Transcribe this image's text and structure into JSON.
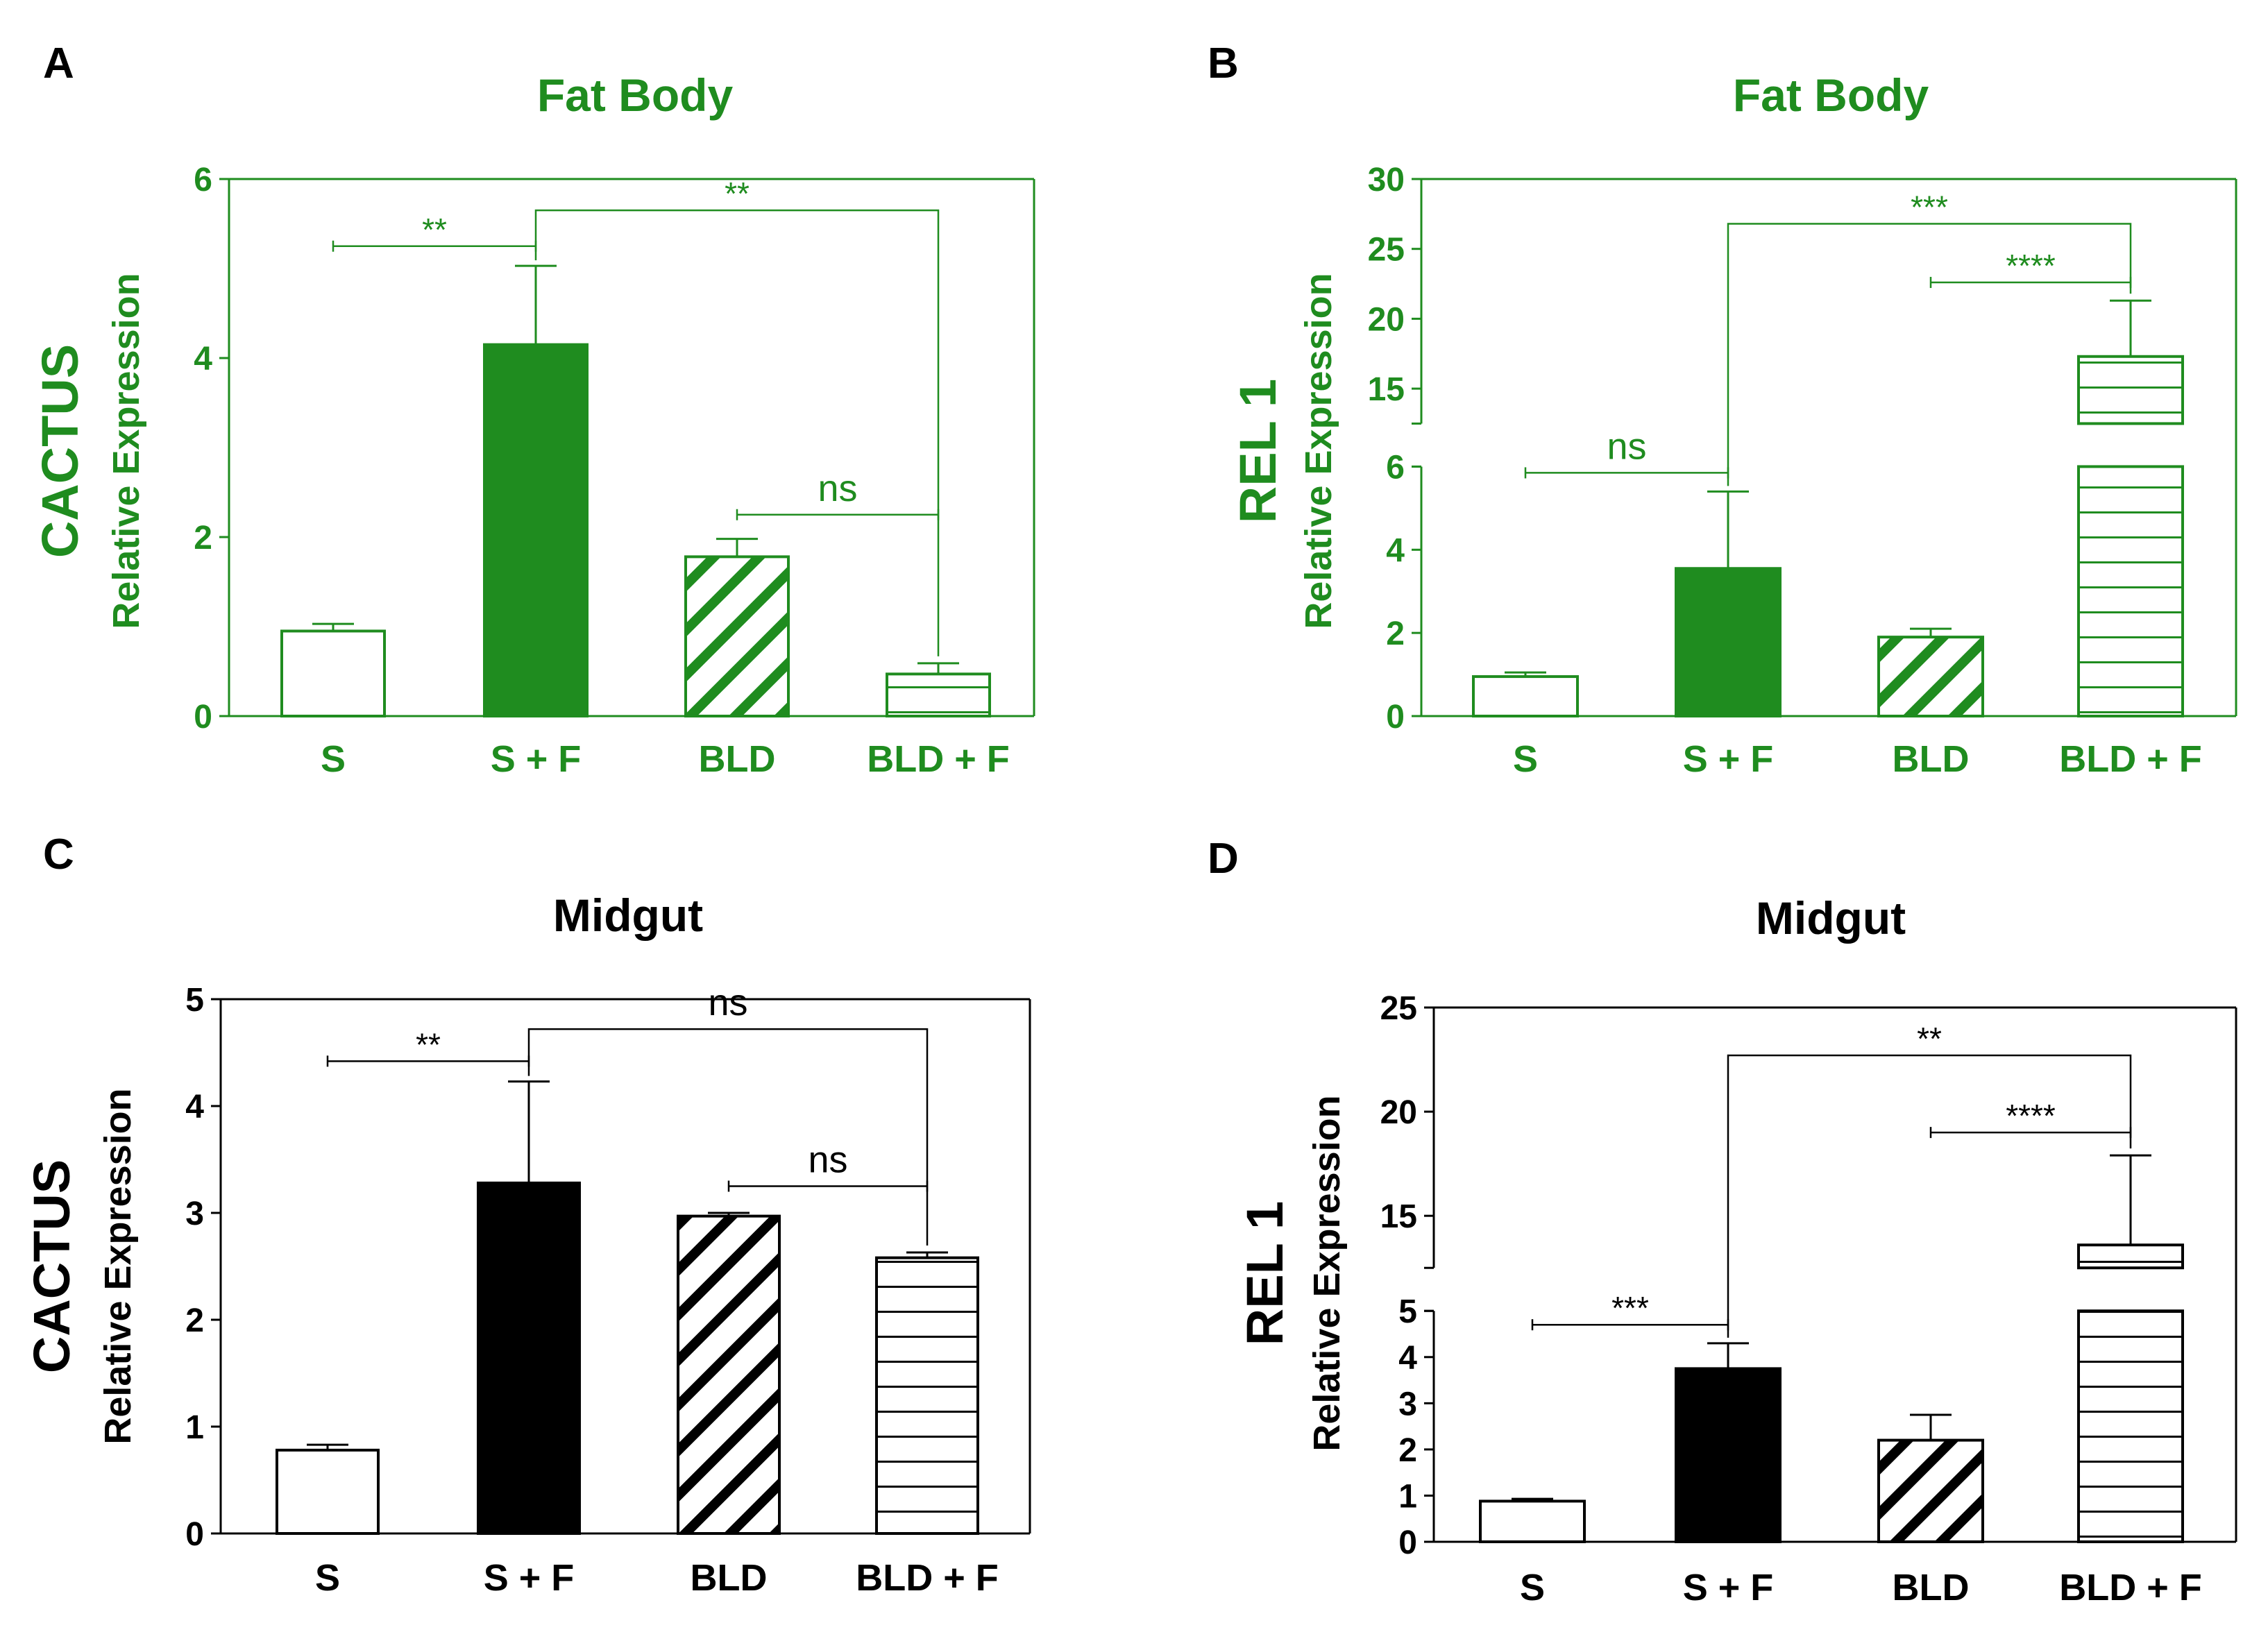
{
  "colors": {
    "green": "#1f8c1f",
    "black": "#000000"
  },
  "chart_data": [
    {
      "panel": "A",
      "type": "bar",
      "title": "Fat Body",
      "gene": "CACTUS",
      "ylabel": "Relative Expression",
      "color": "green",
      "categories": [
        "S",
        "S + F",
        "BLD",
        "BLD + F"
      ],
      "fills": [
        "open",
        "solid",
        "diagonal",
        "horizontal"
      ],
      "values": [
        0.95,
        4.15,
        1.78,
        0.47
      ],
      "errors": [
        0.08,
        0.88,
        0.2,
        0.12
      ],
      "ylim": [
        0,
        6
      ],
      "ticks": [
        0,
        2,
        4,
        6
      ],
      "ticklabels": [
        "0",
        "2",
        "4",
        "6"
      ],
      "broken_axis": false,
      "sig": [
        {
          "label": "**",
          "kind": "line",
          "from": 0,
          "to": 1,
          "y": 5.25
        },
        {
          "label": "**",
          "kind": "bracket",
          "from": 1,
          "to": 3,
          "y": 5.65
        },
        {
          "label": "ns",
          "kind": "line",
          "from": 2,
          "to": 3,
          "y": 2.25
        }
      ]
    },
    {
      "panel": "B",
      "type": "bar",
      "title": "Fat Body",
      "gene": "REL 1",
      "ylabel": "Relative Expression",
      "color": "green",
      "categories": [
        "S",
        "S + F",
        "BLD",
        "BLD + F"
      ],
      "fills": [
        "open",
        "solid",
        "diagonal",
        "horizontal"
      ],
      "values": [
        0.95,
        3.55,
        1.9,
        17.3
      ],
      "errors": [
        0.1,
        1.85,
        0.2,
        4.0
      ],
      "ylim": [
        0,
        30
      ],
      "ticks": [
        0,
        2,
        4,
        6,
        15,
        20,
        25,
        30
      ],
      "ticklabels": [
        "0",
        "2",
        "4",
        "6",
        "15",
        "20",
        "25",
        "30"
      ],
      "broken_axis": true,
      "break_lower": [
        0,
        6
      ],
      "break_upper": [
        12.5,
        30
      ],
      "sig": [
        {
          "label": "ns",
          "kind": "line",
          "from": 0,
          "to": 1,
          "y": 5.85
        },
        {
          "label": "***",
          "kind": "bracket",
          "from": 1,
          "to": 3,
          "y": 26.8
        },
        {
          "label": "****",
          "kind": "line",
          "from": 2,
          "to": 3,
          "y": 22.6
        }
      ]
    },
    {
      "panel": "C",
      "type": "bar",
      "title": "Midgut",
      "gene": "CACTUS",
      "ylabel": "Relative Expression",
      "color": "black",
      "categories": [
        "S",
        "S + F",
        "BLD",
        "BLD + F"
      ],
      "fills": [
        "open",
        "solid",
        "diagonal",
        "horizontal"
      ],
      "values": [
        0.78,
        3.28,
        2.97,
        2.58
      ],
      "errors": [
        0.05,
        0.95,
        0.03,
        0.05
      ],
      "ylim": [
        0,
        5
      ],
      "ticks": [
        0,
        1,
        2,
        3,
        4,
        5
      ],
      "ticklabels": [
        "0",
        "1",
        "2",
        "3",
        "4",
        "5"
      ],
      "broken_axis": false,
      "sig": [
        {
          "label": "**",
          "kind": "line",
          "from": 0,
          "to": 1,
          "y": 4.42
        },
        {
          "label": "ns",
          "kind": "bracket",
          "from": 1,
          "to": 3,
          "y": 4.72
        },
        {
          "label": "ns",
          "kind": "line",
          "from": 2,
          "to": 3,
          "y": 3.25
        }
      ]
    },
    {
      "panel": "D",
      "type": "bar",
      "title": "Midgut",
      "gene": "REL 1",
      "ylabel": "Relative Expression",
      "color": "black",
      "categories": [
        "S",
        "S + F",
        "BLD",
        "BLD + F"
      ],
      "fills": [
        "open",
        "solid",
        "diagonal",
        "horizontal"
      ],
      "values": [
        0.88,
        3.75,
        2.2,
        13.6
      ],
      "errors": [
        0.05,
        0.55,
        0.55,
        4.3
      ],
      "ylim": [
        0,
        25
      ],
      "ticks": [
        0,
        1,
        2,
        3,
        4,
        5,
        15,
        20,
        25
      ],
      "ticklabels": [
        "0",
        "1",
        "2",
        "3",
        "4",
        "5",
        "15",
        "20",
        "25"
      ],
      "broken_axis": true,
      "break_lower": [
        0,
        5
      ],
      "break_upper": [
        12.5,
        25
      ],
      "sig": [
        {
          "label": "***",
          "kind": "line",
          "from": 0,
          "to": 1,
          "y": 4.7
        },
        {
          "label": "**",
          "kind": "bracket",
          "from": 1,
          "to": 3,
          "y": 22.7
        },
        {
          "label": "****",
          "kind": "line",
          "from": 2,
          "to": 3,
          "y": 19
        }
      ]
    }
  ]
}
